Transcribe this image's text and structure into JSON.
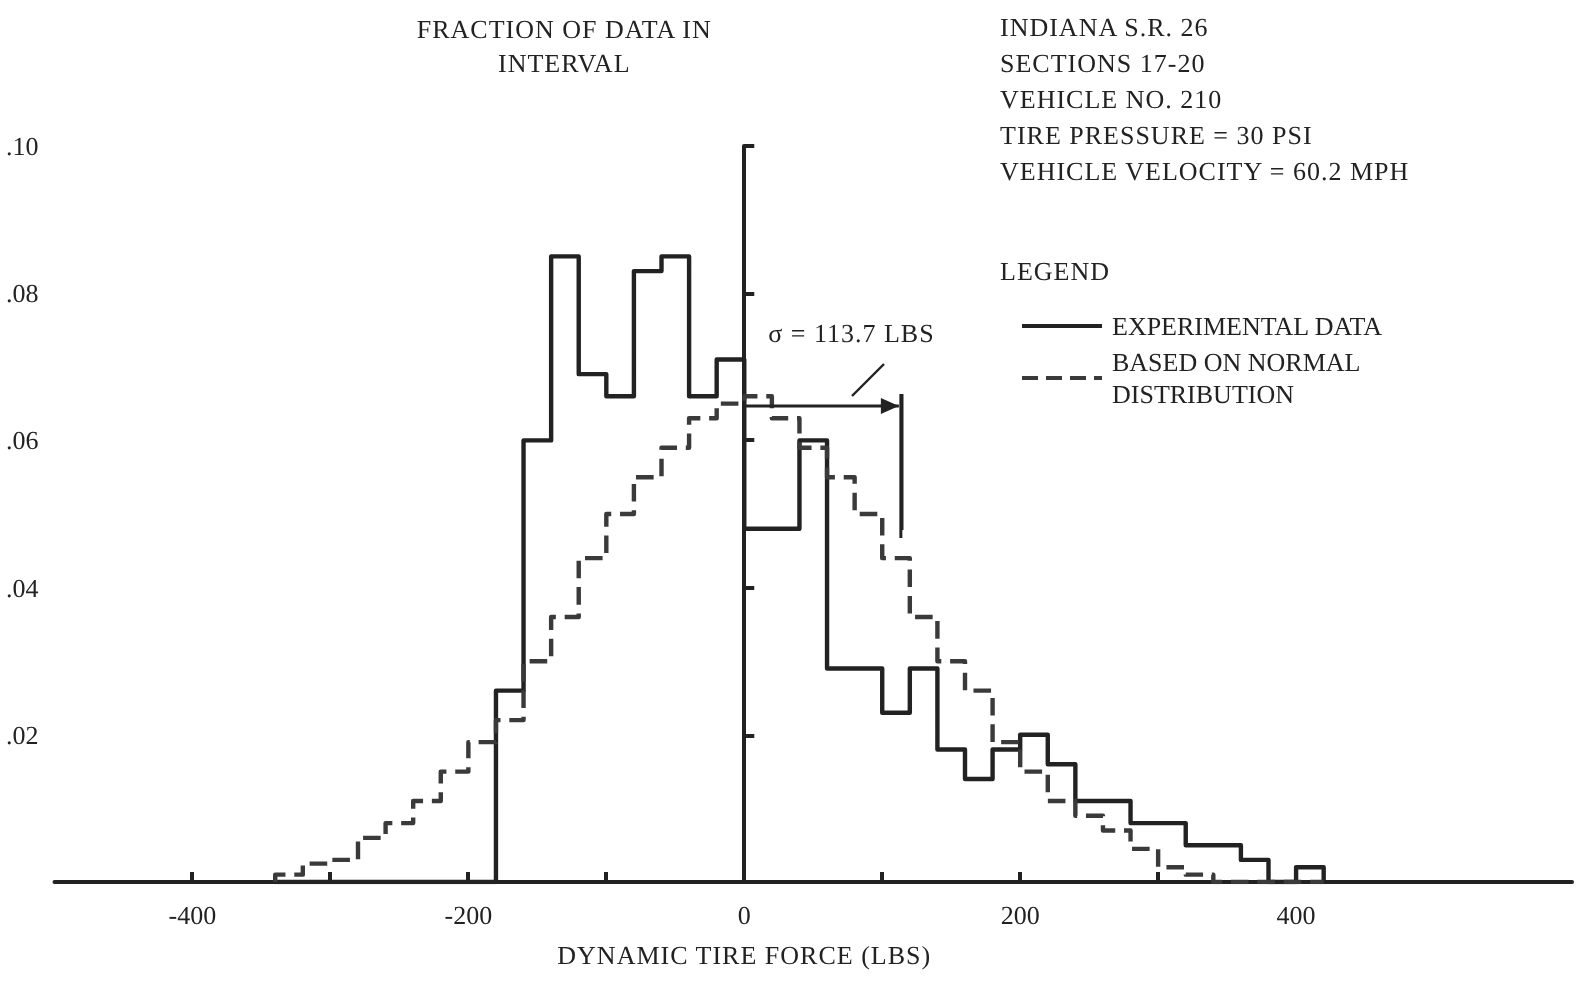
{
  "chart_data": {
    "type": "histogram",
    "ylabel": "FRACTION OF DATA IN INTERVAL",
    "xlabel": "DYNAMIC TIRE FORCE (LBS)",
    "legend_title": "LEGEND",
    "legend": "top right",
    "annotations": [
      "INDIANA S.R. 26",
      "SECTIONS 17-20",
      "VEHICLE NO. 210",
      "TIRE PRESSURE = 30 PSI",
      "VEHICLE VELOCITY = 60.2 MPH"
    ],
    "ref_lines": [
      {
        "axis": "x",
        "value": 113.7,
        "label": "σ = 113.7 LBS"
      }
    ],
    "xlim": [
      -500,
      600
    ],
    "xticks": [
      -400,
      {
        "value": -300,
        "label": null
      },
      -200,
      {
        "value": -100,
        "label": null
      },
      0,
      {
        "value": 100,
        "label": null
      },
      200,
      {
        "value": 300,
        "label": null
      },
      400
    ],
    "ylim": [
      0,
      0.1
    ],
    "yticks": [
      {
        "value": 0.02,
        "label": ".02"
      },
      {
        "value": 0.04,
        "label": ".04"
      },
      {
        "value": 0.06,
        "label": ".06"
      },
      {
        "value": 0.08,
        "label": ".08"
      },
      {
        "value": 0.1,
        "label": ".10"
      }
    ],
    "bins": [
      -340,
      -320,
      -300,
      -280,
      -260,
      -240,
      -220,
      -200,
      -180,
      -160,
      -140,
      -120,
      -100,
      -80,
      -60,
      -40,
      -20,
      0,
      20,
      40,
      60,
      80,
      100,
      120,
      140,
      160,
      180,
      200,
      220,
      240,
      260,
      280,
      300,
      320,
      340,
      360,
      380,
      400,
      420
    ],
    "series": [
      {
        "name": "EXPERIMENTAL DATA",
        "color": "#222222",
        "line_style": "solid",
        "values": [
          0,
          0,
          0,
          0,
          0,
          0,
          0,
          0,
          0.026,
          0.06,
          0.085,
          0.069,
          0.066,
          0.083,
          0.085,
          0.066,
          0.071,
          0.048,
          0.048,
          0.06,
          0.029,
          0.029,
          0.023,
          0.029,
          0.018,
          0.014,
          0.018,
          0.02,
          0.016,
          0.011,
          0.011,
          0.008,
          0.008,
          0.005,
          0.005,
          0.003,
          0,
          0.002
        ]
      },
      {
        "name": "BASED ON NORMAL DISTRIBUTION",
        "color": "#3a3a3a",
        "line_style": "dashed",
        "values": [
          0.001,
          0.0025,
          0.003,
          0.006,
          0.008,
          0.011,
          0.015,
          0.019,
          0.022,
          0.03,
          0.036,
          0.044,
          0.05,
          0.055,
          0.059,
          0.063,
          0.065,
          0.066,
          0.063,
          0.059,
          0.055,
          0.05,
          0.044,
          0.036,
          0.03,
          0.026,
          0.019,
          0.015,
          0.011,
          0.009,
          0.007,
          0.0045,
          0.002,
          0.001,
          0,
          0,
          0,
          0
        ]
      }
    ]
  }
}
